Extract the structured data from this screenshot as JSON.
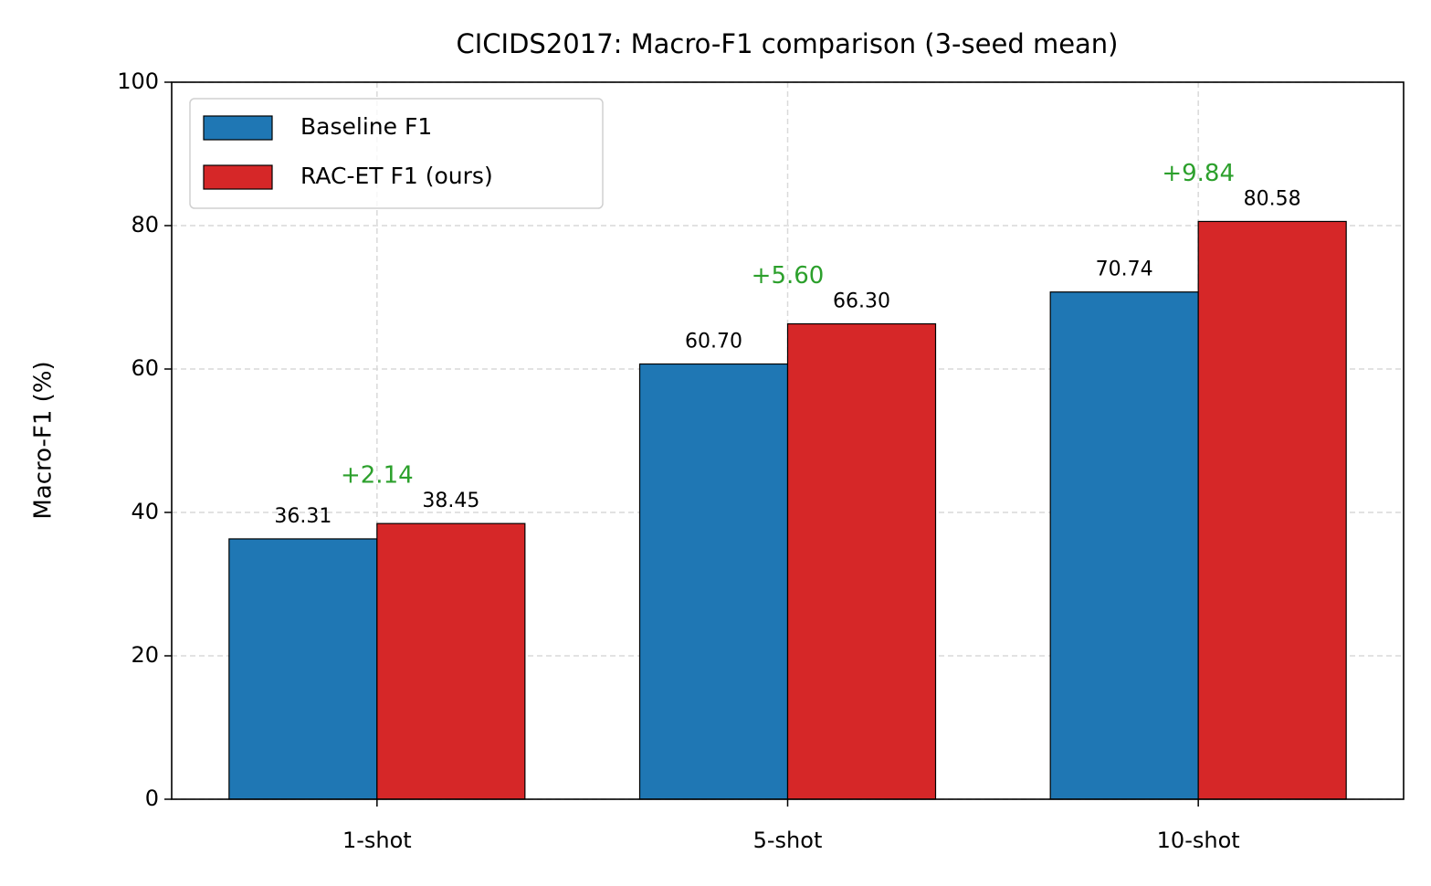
{
  "chart_data": {
    "type": "bar",
    "title": "CICIDS2017: Macro-F1 comparison (3-seed mean)",
    "ylabel": "Macro-F1 (%)",
    "categories": [
      "1-shot",
      "5-shot",
      "10-shot"
    ],
    "series": [
      {
        "name": "Baseline F1",
        "color": "#1f77b4",
        "values": [
          36.31,
          60.7,
          70.74
        ],
        "value_labels": [
          "36.31",
          "60.70",
          "70.74"
        ]
      },
      {
        "name": "RAC-ET F1 (ours)",
        "color": "#d62728",
        "values": [
          38.45,
          66.3,
          80.58
        ],
        "value_labels": [
          "38.45",
          "66.30",
          "80.58"
        ]
      }
    ],
    "annotations": [
      "+2.14",
      "+5.60",
      "+9.84"
    ],
    "annotation_color": "#2ca02c",
    "ylim": [
      0,
      100
    ],
    "yticks": [
      0,
      20,
      40,
      60,
      80,
      100
    ],
    "grid": true,
    "legend": "upper left"
  }
}
